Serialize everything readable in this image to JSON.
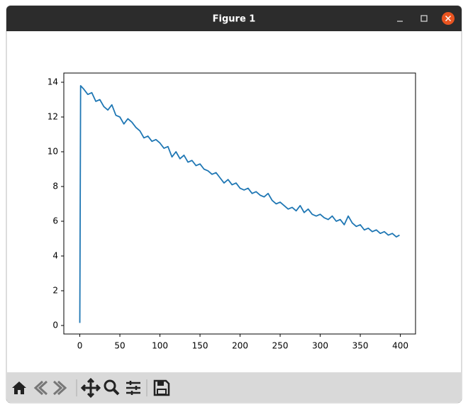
{
  "window": {
    "title": "Figure 1"
  },
  "chart_data": {
    "type": "line",
    "x": [
      0,
      1,
      5,
      10,
      15,
      20,
      25,
      30,
      35,
      40,
      45,
      50,
      55,
      60,
      65,
      70,
      75,
      80,
      85,
      90,
      95,
      100,
      105,
      110,
      115,
      120,
      125,
      130,
      135,
      140,
      145,
      150,
      155,
      160,
      165,
      170,
      175,
      180,
      185,
      190,
      195,
      200,
      205,
      210,
      215,
      220,
      225,
      230,
      235,
      240,
      245,
      250,
      255,
      260,
      265,
      270,
      275,
      280,
      285,
      290,
      295,
      300,
      305,
      310,
      315,
      320,
      325,
      330,
      335,
      340,
      345,
      350,
      355,
      360,
      365,
      370,
      375,
      380,
      385,
      390,
      395,
      399
    ],
    "series": [
      {
        "color": "#1f77b4",
        "values": [
          0.15,
          13.8,
          13.6,
          13.3,
          13.4,
          12.9,
          13.0,
          12.6,
          12.4,
          12.7,
          12.1,
          12.0,
          11.6,
          11.9,
          11.7,
          11.4,
          11.2,
          10.8,
          10.9,
          10.6,
          10.7,
          10.5,
          10.2,
          10.3,
          9.7,
          10.0,
          9.6,
          9.8,
          9.4,
          9.5,
          9.2,
          9.3,
          9.0,
          8.9,
          8.7,
          8.8,
          8.5,
          8.2,
          8.4,
          8.1,
          8.2,
          7.9,
          7.8,
          7.9,
          7.6,
          7.7,
          7.5,
          7.4,
          7.6,
          7.2,
          7.0,
          7.1,
          6.9,
          6.7,
          6.8,
          6.6,
          6.9,
          6.5,
          6.7,
          6.4,
          6.3,
          6.4,
          6.2,
          6.1,
          6.3,
          6.0,
          6.1,
          5.8,
          6.3,
          5.9,
          5.7,
          5.8,
          5.5,
          5.6,
          5.4,
          5.5,
          5.3,
          5.4,
          5.2,
          5.3,
          5.1,
          5.2
        ]
      }
    ],
    "xlim": [
      -19.95,
      418.95
    ],
    "xticks": [
      0,
      50,
      100,
      150,
      200,
      250,
      300,
      350,
      400
    ],
    "ylim": [
      -0.49,
      14.53
    ],
    "yticks": [
      0,
      2,
      4,
      6,
      8,
      10,
      12,
      14
    ]
  }
}
